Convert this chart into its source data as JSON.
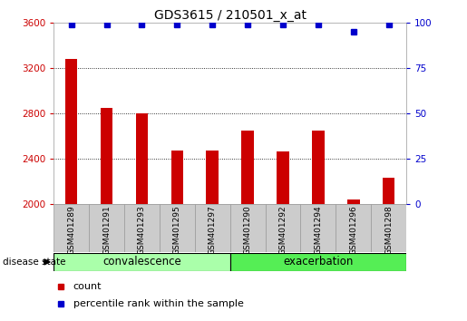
{
  "title": "GDS3615 / 210501_x_at",
  "samples": [
    "GSM401289",
    "GSM401291",
    "GSM401293",
    "GSM401295",
    "GSM401297",
    "GSM401290",
    "GSM401292",
    "GSM401294",
    "GSM401296",
    "GSM401298"
  ],
  "counts": [
    3280,
    2850,
    2800,
    2470,
    2470,
    2650,
    2460,
    2650,
    2040,
    2230
  ],
  "percentile_ranks": [
    99,
    99,
    99,
    99,
    99,
    99,
    99,
    99,
    95,
    99
  ],
  "ylim_left": [
    2000,
    3600
  ],
  "ylim_right": [
    0,
    100
  ],
  "yticks_left": [
    2000,
    2400,
    2800,
    3200,
    3600
  ],
  "yticks_right": [
    0,
    25,
    50,
    75,
    100
  ],
  "bar_color": "#cc0000",
  "dot_color": "#0000cc",
  "convalescence_color": "#aaffaa",
  "exacerbation_color": "#55ee55",
  "background_color": "#ffffff",
  "label_area_color": "#cccccc",
  "grid_color": "#000000",
  "tick_color_left": "#cc0000",
  "tick_color_right": "#0000cc",
  "disease_state_label": "disease state",
  "group_label_convalescence": "convalescence",
  "group_label_exacerbation": "exacerbation",
  "legend_count": "count",
  "legend_percentile": "percentile rank within the sample",
  "n_conv": 5,
  "n_exac": 5
}
